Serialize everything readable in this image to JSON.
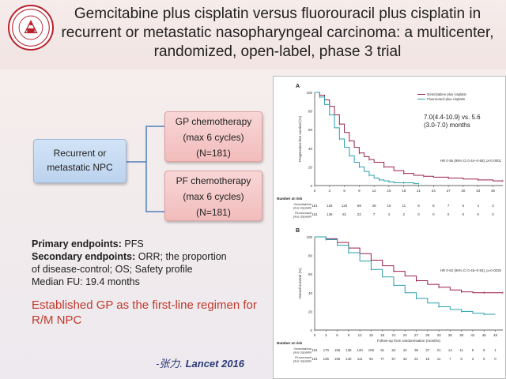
{
  "slide": {
    "title": "Gemcitabine plus cisplatin versus fluorouracil plus cisplatin in recurrent or metastatic nasopharyngeal carcinoma: a multicenter, randomized, open-label, phase 3 trial"
  },
  "flow": {
    "source": {
      "line1": "Recurrent or",
      "line2": "metastatic NPC"
    },
    "gp": {
      "line1": "GP chemotherapy",
      "line2": "(max 6 cycles)",
      "line3": "(N=181)"
    },
    "pf": {
      "line1": "PF chemotherapy",
      "line2": "(max 6 cycles)",
      "line3": "(N=181)"
    }
  },
  "endpoints": {
    "primary_label": "Primary endpoints:",
    "primary_value": "PFS",
    "secondary_label": "Secondary endpoints:",
    "secondary_value": "ORR; the proportion",
    "secondary_value2": "of disease-control; OS; Safety profile",
    "median_fu": "Median FU: 19.4 months"
  },
  "conclusion": "Established GP as the first-line regimen for R/M NPC",
  "citation": {
    "author": "-张力.",
    "journal_year": "Lancet 2016"
  },
  "figure": {
    "panel_a": {
      "label": "A",
      "ylabel": "Progression-free survival (%)",
      "median_text_line1": "7.0(4.4-10.9) vs. 5.6",
      "median_text_line2": "(3.0-7.0) months",
      "hr_text": "HR 0·55 (95% CI 0·44–0·68); p<0·0001",
      "x_ticks": [
        "0",
        "3",
        "6",
        "9",
        "12",
        "15",
        "18",
        "21",
        "24",
        "27",
        "30",
        "33",
        "36"
      ],
      "y_ticks": [
        "100",
        "80",
        "60",
        "40",
        "20",
        "0"
      ],
      "legend": [
        "Gemcitabine plus cisplatin",
        "Fluorouracil plus cisplatin"
      ],
      "risk_header": "Number at risk",
      "risk_rows": [
        {
          "label": "Gemcitabine plus cisplatin",
          "values": [
            "181",
            "153",
            "120",
            "58",
            "28",
            "16",
            "11",
            "8",
            "8",
            "7",
            "5",
            "4",
            "3"
          ]
        },
        {
          "label": "Fluorouracil plus cisplatin",
          "values": [
            "181",
            "136",
            "81",
            "22",
            "7",
            "4",
            "2",
            "0",
            "0",
            "0",
            "0",
            "0",
            "0"
          ]
        }
      ]
    },
    "panel_b": {
      "label": "B",
      "ylabel": "Overall survival (%)",
      "hr_text": "HR 0·62 (95% CI 0·45–0·84); p=0·0025",
      "xlabel": "Follow-up from randomisation (months)",
      "x_ticks": [
        "0",
        "3",
        "6",
        "9",
        "12",
        "15",
        "18",
        "21",
        "24",
        "27",
        "30",
        "33",
        "36",
        "39",
        "42",
        "45",
        "48"
      ],
      "y_ticks": [
        "100",
        "80",
        "60",
        "40",
        "20",
        "0"
      ],
      "risk_header": "Number at risk",
      "risk_rows": [
        {
          "label": "Gemcitabine plus cisplatin",
          "values": [
            "181",
            "170",
            "155",
            "138",
            "120",
            "106",
            "91",
            "62",
            "42",
            "36",
            "27",
            "21",
            "14",
            "11",
            "5",
            "5",
            "1"
          ]
        },
        {
          "label": "Fluorouracil plus cisplatin",
          "values": [
            "181",
            "136",
            "155",
            "140",
            "111",
            "94",
            "77",
            "57",
            "33",
            "21",
            "15",
            "11",
            "7",
            "5",
            "3",
            "0",
            "0"
          ]
        }
      ]
    },
    "colors": {
      "gp": "#9a1f4e",
      "pf": "#2a9fae"
    }
  },
  "chart_data": [
    {
      "type": "line",
      "title": "",
      "xlabel": "",
      "ylabel": "Progression-free survival (%)",
      "xlim": [
        0,
        38
      ],
      "ylim": [
        0,
        100
      ],
      "series": [
        {
          "name": "Gemcitabine plus cisplatin",
          "x": [
            0,
            1,
            2,
            3,
            4,
            5,
            6,
            7,
            8,
            9,
            10,
            11,
            12,
            14,
            16,
            18,
            20,
            22,
            24,
            27,
            30,
            33,
            36,
            38
          ],
          "values": [
            100,
            97,
            92,
            85,
            76,
            66,
            57,
            48,
            41,
            35,
            31,
            28,
            25,
            20,
            16,
            13,
            11,
            10,
            9,
            8,
            7,
            6,
            5,
            5
          ]
        },
        {
          "name": "Fluorouracil plus cisplatin",
          "x": [
            0,
            1,
            2,
            3,
            4,
            5,
            6,
            7,
            8,
            9,
            10,
            11,
            12,
            13,
            14,
            15,
            16,
            18,
            20,
            21
          ],
          "values": [
            100,
            95,
            87,
            76,
            62,
            50,
            41,
            32,
            25,
            20,
            15,
            11,
            8,
            6,
            5,
            4,
            3,
            3,
            2,
            2
          ]
        }
      ]
    },
    {
      "type": "line",
      "title": "",
      "xlabel": "Follow-up from randomisation (months)",
      "ylabel": "Overall survival (%)",
      "xlim": [
        0,
        50
      ],
      "ylim": [
        0,
        100
      ],
      "series": [
        {
          "name": "Gemcitabine plus cisplatin",
          "x": [
            0,
            3,
            6,
            9,
            12,
            15,
            18,
            21,
            24,
            27,
            30,
            33,
            36,
            39,
            42,
            45,
            48,
            50
          ],
          "values": [
            100,
            98,
            94,
            88,
            82,
            75,
            69,
            63,
            58,
            53,
            49,
            46,
            43,
            41,
            40,
            40,
            40,
            40
          ]
        },
        {
          "name": "Fluorouracil plus cisplatin",
          "x": [
            0,
            3,
            6,
            9,
            12,
            15,
            18,
            21,
            24,
            27,
            30,
            33,
            36,
            39,
            42,
            45,
            48
          ],
          "values": [
            100,
            97,
            91,
            83,
            74,
            65,
            57,
            48,
            40,
            34,
            29,
            25,
            22,
            20,
            18,
            17,
            17
          ]
        }
      ]
    }
  ]
}
